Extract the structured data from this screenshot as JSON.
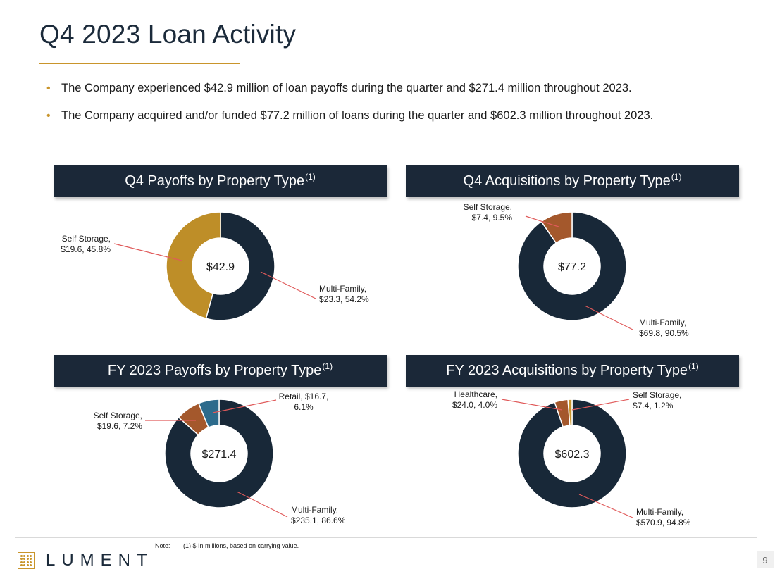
{
  "page": {
    "title": "Q4 2023 Loan Activity",
    "page_number": "9"
  },
  "bullets": [
    "The Company experienced $42.9 million of loan payoffs during the quarter and $271.4 million throughout 2023.",
    "The Company acquired and/or funded $77.2 million of loans during the quarter and $602.3 million throughout 2023."
  ],
  "panels": [
    {
      "title": "Q4 Payoffs by Property Type",
      "superscript": "(1)"
    },
    {
      "title": "Q4 Acquisitions by Property Type",
      "superscript": "(1)"
    },
    {
      "title": "FY 2023 Payoffs by Property Type",
      "superscript": "(1)"
    },
    {
      "title": "FY 2023 Acquisitions by Property Type",
      "superscript": "(1)"
    }
  ],
  "colors": {
    "navy": "#1b2838",
    "gold": "#c9952b",
    "multi_family": "#182838",
    "self_storage_q4_payoffs": "#be8e28",
    "self_storage": "#a4582c",
    "retail": "#2d6b8c",
    "healthcare": "#a4582c",
    "self_storage_fy_acq": "#c9952b",
    "leader_line": "#e05a5a"
  },
  "chart_data": [
    {
      "type": "pie",
      "center_label": "$42.9",
      "slices": [
        {
          "name": "Multi-Family",
          "value": 23.3,
          "percent": 54.2,
          "color": "#182838",
          "label_lines": [
            "Multi-Family,",
            "$23.3, 54.2%"
          ]
        },
        {
          "name": "Self Storage",
          "value": 19.6,
          "percent": 45.8,
          "color": "#be8e28",
          "label_lines": [
            "Self Storage,",
            "$19.6, 45.8%"
          ]
        }
      ]
    },
    {
      "type": "pie",
      "center_label": "$77.2",
      "slices": [
        {
          "name": "Multi-Family",
          "value": 69.8,
          "percent": 90.5,
          "color": "#182838",
          "label_lines": [
            "Multi-Family,",
            "$69.8, 90.5%"
          ]
        },
        {
          "name": "Self Storage",
          "value": 7.4,
          "percent": 9.5,
          "color": "#a4582c",
          "label_lines": [
            "Self Storage,",
            "$7.4, 9.5%"
          ]
        }
      ]
    },
    {
      "type": "pie",
      "center_label": "$271.4",
      "slices": [
        {
          "name": "Multi-Family",
          "value": 235.1,
          "percent": 86.6,
          "color": "#182838",
          "label_lines": [
            "Multi-Family,",
            "$235.1, 86.6%"
          ]
        },
        {
          "name": "Self Storage",
          "value": 19.6,
          "percent": 7.2,
          "color": "#a4582c",
          "label_lines": [
            "Self Storage,",
            "$19.6, 7.2%"
          ]
        },
        {
          "name": "Retail",
          "value": 16.7,
          "percent": 6.1,
          "color": "#2d6b8c",
          "label_lines": [
            "Retail, $16.7,",
            "6.1%"
          ]
        }
      ]
    },
    {
      "type": "pie",
      "center_label": "$602.3",
      "slices": [
        {
          "name": "Multi-Family",
          "value": 570.9,
          "percent": 94.8,
          "color": "#182838",
          "label_lines": [
            "Multi-Family,",
            "$570.9, 94.8%"
          ]
        },
        {
          "name": "Healthcare",
          "value": 24.0,
          "percent": 4.0,
          "color": "#a4582c",
          "label_lines": [
            "Healthcare,",
            "$24.0, 4.0%"
          ]
        },
        {
          "name": "Self Storage",
          "value": 7.4,
          "percent": 1.2,
          "color": "#c9952b",
          "label_lines": [
            "Self Storage,",
            "$7.4, 1.2%"
          ]
        }
      ]
    }
  ],
  "footer": {
    "note_label": "Note:",
    "note_text": "(1) $ In millions, based on carrying value.",
    "logo_text": "LUMENT"
  }
}
